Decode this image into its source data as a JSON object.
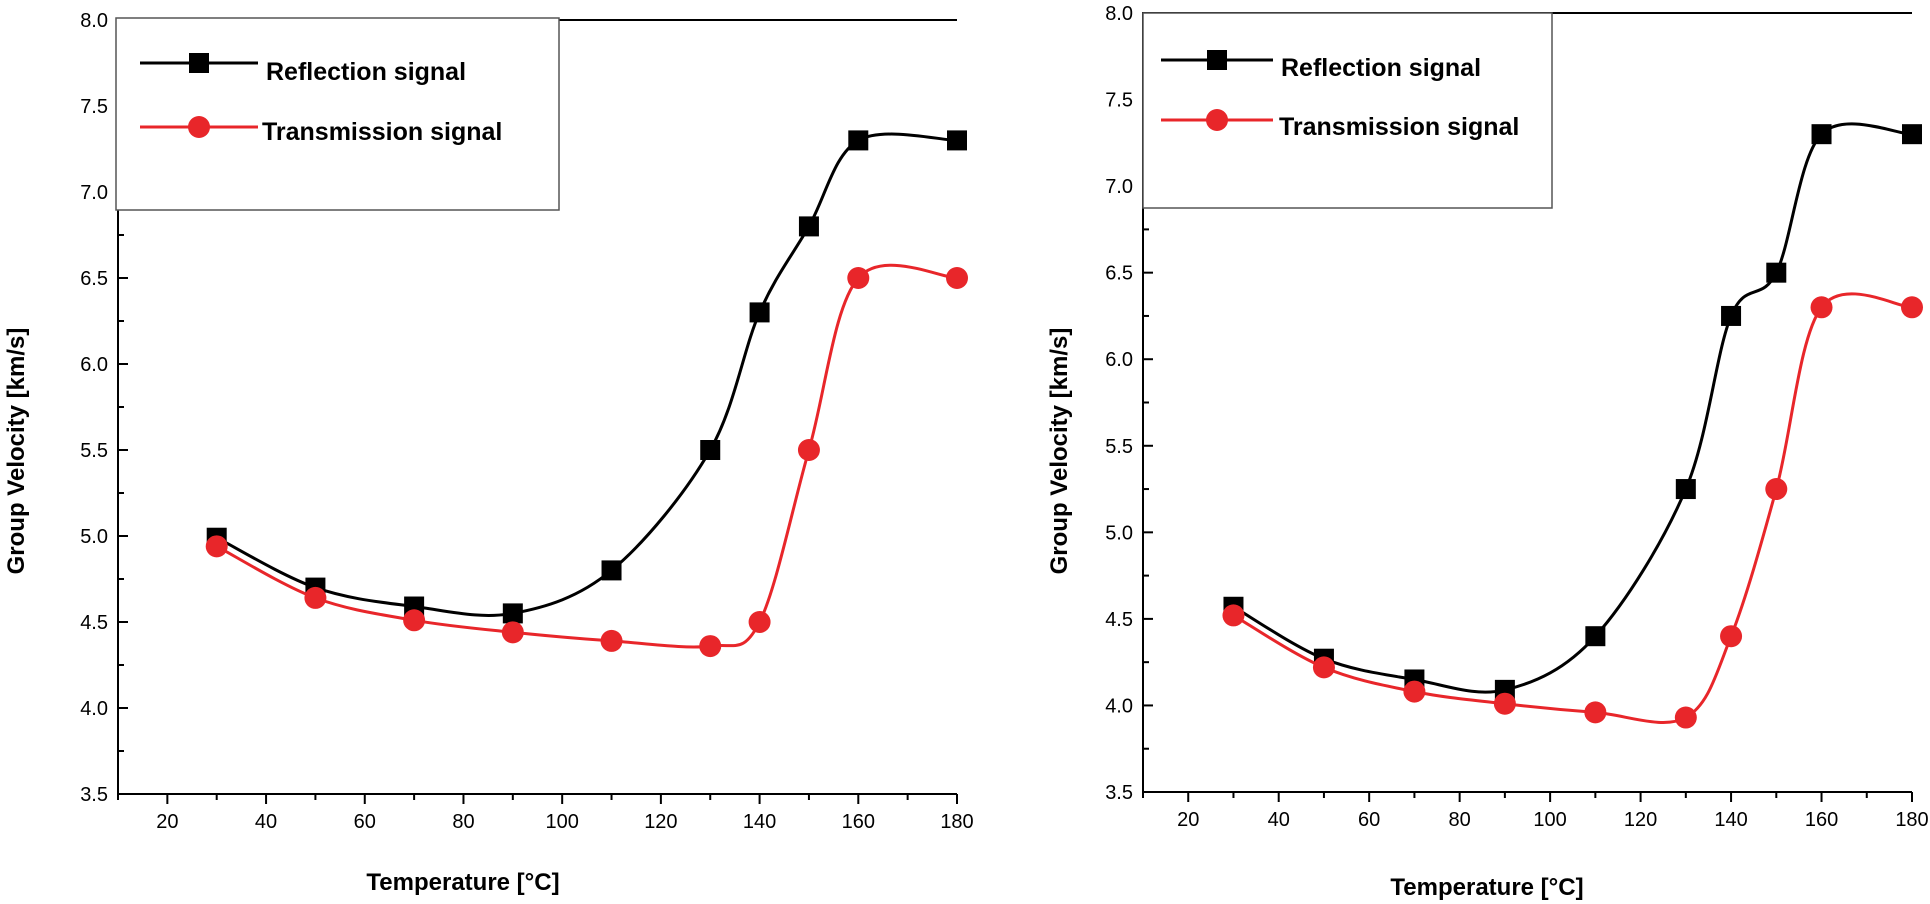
{
  "colors": {
    "reflection": "#000000",
    "transmission": "#e8262a"
  },
  "chart_data": [
    {
      "type": "line",
      "title": "",
      "xlabel": "Temperature [°C]",
      "ylabel": "Group Velocity [km/s]",
      "xlim": [
        10,
        180
      ],
      "ylim": [
        3.5,
        8.0
      ],
      "xticks": [
        "20",
        "40",
        "60",
        "80",
        "100",
        "120",
        "140",
        "160",
        "180"
      ],
      "yticks": [
        "3.5",
        "4.0",
        "4.5",
        "5.0",
        "5.5",
        "6.0",
        "6.5",
        "7.0",
        "7.5",
        "8.0"
      ],
      "legend": [
        "Reflection signal",
        "Transmission signal"
      ],
      "legend_position": "top-left",
      "series": [
        {
          "name": "Reflection signal",
          "marker": "square",
          "x": [
            30,
            50,
            70,
            90,
            110,
            130,
            140,
            150,
            160,
            180
          ],
          "values": [
            4.99,
            4.7,
            4.59,
            4.55,
            4.8,
            5.5,
            6.3,
            6.8,
            7.3,
            7.3
          ]
        },
        {
          "name": "Transmission signal",
          "marker": "circle",
          "x": [
            30,
            50,
            70,
            90,
            110,
            130,
            140,
            150,
            160,
            180
          ],
          "values": [
            4.94,
            4.64,
            4.51,
            4.44,
            4.39,
            4.36,
            4.5,
            5.5,
            6.5,
            6.5
          ]
        }
      ]
    },
    {
      "type": "line",
      "title": "",
      "xlabel": "Temperature [°C]",
      "ylabel": "Group Velocity [km/s]",
      "xlim": [
        10,
        180
      ],
      "ylim": [
        3.5,
        8.0
      ],
      "xticks": [
        "20",
        "40",
        "60",
        "80",
        "100",
        "120",
        "140",
        "160",
        "180"
      ],
      "yticks": [
        "3.5",
        "4.0",
        "4.5",
        "5.0",
        "5.5",
        "6.0",
        "6.5",
        "7.0",
        "7.5",
        "8.0"
      ],
      "legend": [
        "Reflection signal",
        "Transmission signal"
      ],
      "legend_position": "top-left",
      "series": [
        {
          "name": "Reflection signal",
          "marker": "square",
          "x": [
            30,
            50,
            70,
            90,
            110,
            130,
            140,
            150,
            160,
            180
          ],
          "values": [
            4.57,
            4.27,
            4.15,
            4.09,
            4.4,
            5.25,
            6.25,
            6.5,
            7.3,
            7.3
          ]
        },
        {
          "name": "Transmission signal",
          "marker": "circle",
          "x": [
            30,
            50,
            70,
            90,
            110,
            130,
            140,
            150,
            160,
            180
          ],
          "values": [
            4.52,
            4.22,
            4.08,
            4.01,
            3.96,
            3.93,
            4.4,
            5.25,
            6.3,
            6.3
          ]
        }
      ]
    }
  ]
}
